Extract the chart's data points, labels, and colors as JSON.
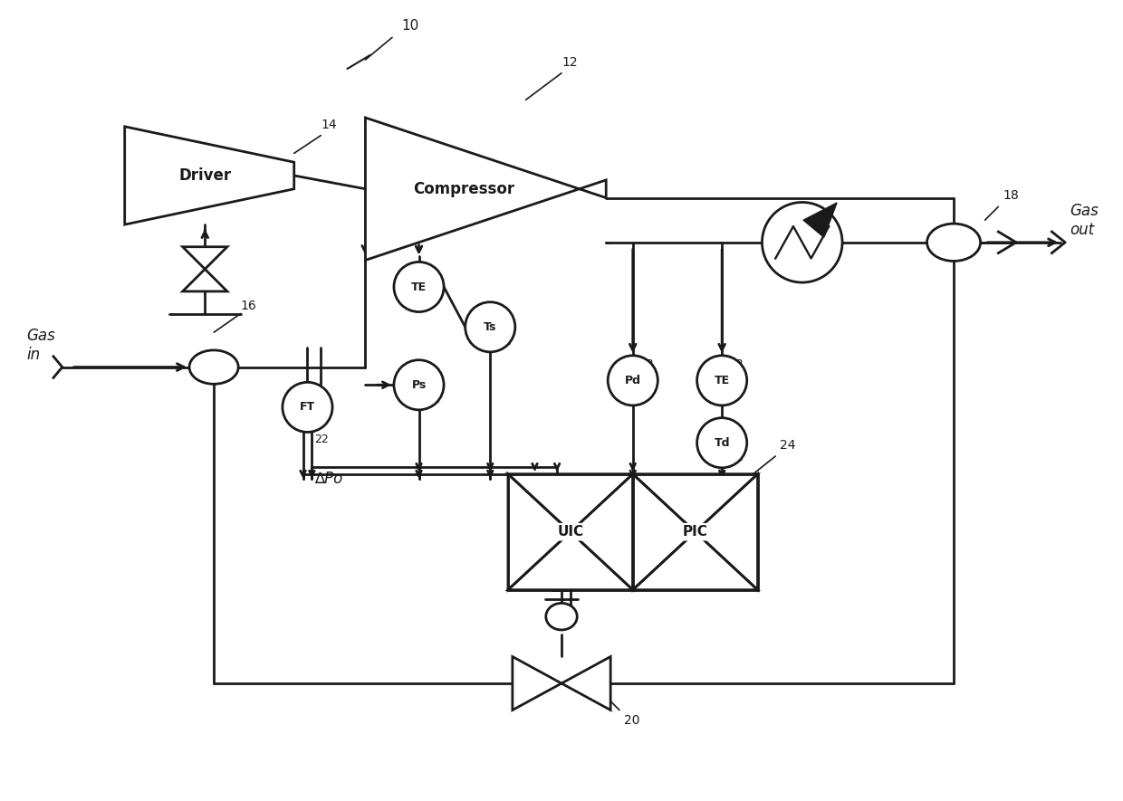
{
  "bg_color": "#ffffff",
  "line_color": "#1a1a1a",
  "lw": 2.0,
  "fig_width": 12.4,
  "fig_height": 8.85,
  "labels": {
    "system": "10",
    "driver_num": "14",
    "compressor_num": "12",
    "gas_in_valve_num": "16",
    "gas_out_valve_num": "18",
    "recycle_valve_num": "20",
    "FT": "FT",
    "sensor_num": "22",
    "Ps": "Ps",
    "Ts": "Ts",
    "TE": "TE",
    "Pd": "Pd",
    "Td": "Td",
    "UIC": "UIC",
    "PIC": "PIC",
    "controller_num": "24",
    "DPo": "∆Po",
    "gas_in": "Gas\nin",
    "gas_out": "Gas\nout",
    "driver_label": "Driver",
    "compressor_label": "Compressor"
  }
}
